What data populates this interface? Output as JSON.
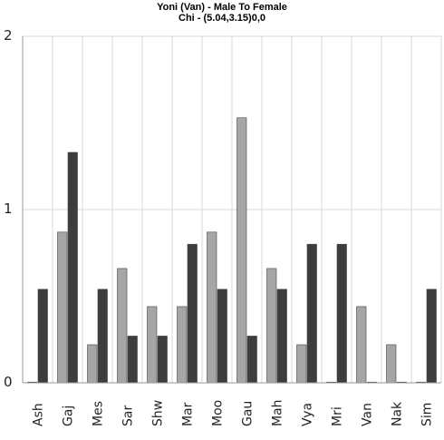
{
  "chart_data": {
    "type": "bar",
    "title": "Yoni (Van) - Male To Female",
    "subtitle": "Chi - (5.04,3.15)0,0",
    "categories": [
      "Ash",
      "Gaj",
      "Mes",
      "Sar",
      "Shw",
      "Mar",
      "Moo",
      "Gau",
      "Mah",
      "Vya",
      "Mri",
      "Van",
      "Nak",
      "Sim"
    ],
    "series": [
      {
        "color": "#a6a6a6",
        "values": [
          0,
          0.87,
          0.22,
          0.66,
          0.44,
          0.44,
          0.87,
          1.53,
          0.66,
          0.22,
          0,
          0.44,
          0.22,
          0
        ]
      },
      {
        "color": "#3d3d3d",
        "values": [
          0.54,
          1.33,
          0.54,
          0.27,
          0.27,
          0.8,
          0.54,
          0.27,
          0.54,
          0.8,
          0.8,
          0,
          0,
          0.54
        ]
      }
    ],
    "y_ticks": [
      "0",
      "1",
      "2"
    ],
    "ylim": [
      0,
      2
    ],
    "grid": true
  }
}
